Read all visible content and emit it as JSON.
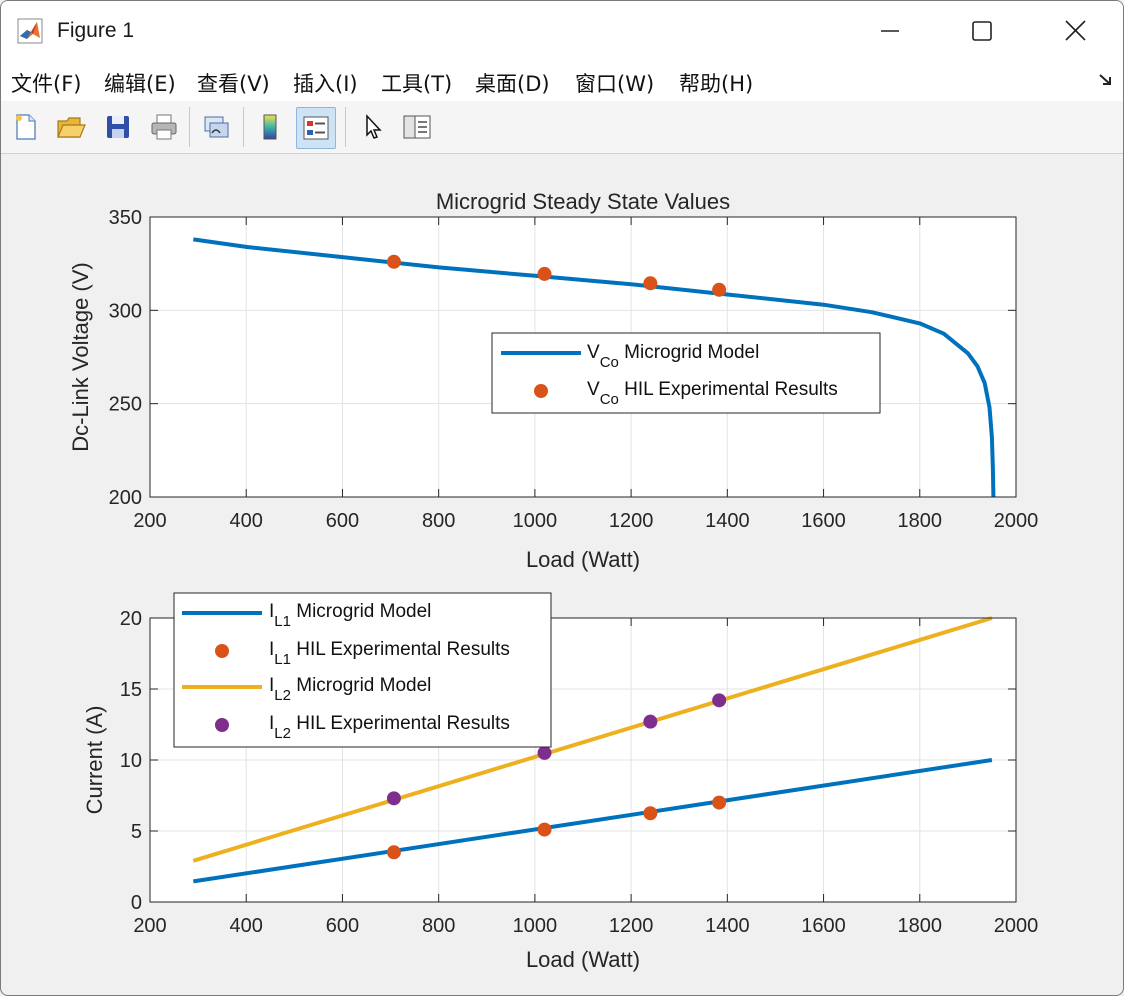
{
  "window": {
    "title": "Figure 1"
  },
  "menu": [
    "文件(F)",
    "编辑(E)",
    "查看(V)",
    "插入(I)",
    "工具(T)",
    "桌面(D)",
    "窗口(W)",
    "帮助(H)"
  ],
  "toolbar": {
    "icons": [
      "new-figure-icon",
      "open-file-icon",
      "save-icon",
      "print-icon",
      "link-plot-icon",
      "insert-colorbar-icon",
      "insert-legend-icon",
      "edit-plot-icon",
      "property-inspector-icon"
    ]
  },
  "colors": {
    "blue": "#0072bd",
    "orange": "#d95319",
    "yellow": "#edb120",
    "purple": "#7e2f8e"
  },
  "chart_data": [
    {
      "type": "line",
      "title": "Microgrid Steady State Values",
      "xlabel": "Load (Watt)",
      "ylabel": "Dc-Link Voltage (V)",
      "xlim": [
        200,
        2000
      ],
      "ylim": [
        200,
        350
      ],
      "xticks": [
        200,
        400,
        600,
        800,
        1000,
        1200,
        1400,
        1600,
        1800,
        2000
      ],
      "yticks": [
        200,
        250,
        300,
        350
      ],
      "grid": true,
      "legend_position": "center-right",
      "series": [
        {
          "name_main": "V",
          "name_sub": "Co",
          "name_rest": " Microgrid Model",
          "style": "line",
          "color": "#0072bd",
          "x": [
            290,
            400,
            600,
            800,
            1000,
            1200,
            1400,
            1600,
            1700,
            1800,
            1850,
            1900,
            1920,
            1935,
            1945,
            1950,
            1952,
            1953
          ],
          "y": [
            338,
            334,
            328.5,
            323,
            318.5,
            314,
            308.5,
            303,
            299,
            293,
            287.5,
            277,
            270,
            261,
            248,
            232,
            215,
            200
          ]
        },
        {
          "name_main": "V",
          "name_sub": "Co",
          "name_rest": " HIL Experimental Results",
          "style": "markers",
          "color": "#d95319",
          "x": [
            707,
            1020,
            1240,
            1383
          ],
          "y": [
            326,
            319.5,
            314.5,
            311
          ]
        }
      ]
    },
    {
      "type": "line",
      "title": "",
      "xlabel": "Load (Watt)",
      "ylabel": "Current (A)",
      "xlim": [
        200,
        2000
      ],
      "ylim": [
        0,
        20
      ],
      "xticks": [
        200,
        400,
        600,
        800,
        1000,
        1200,
        1400,
        1600,
        1800,
        2000
      ],
      "yticks": [
        0,
        5,
        10,
        15,
        20
      ],
      "grid": true,
      "legend_position": "top-left",
      "series": [
        {
          "name_main": "I",
          "name_sub": "L1",
          "name_rest": " Microgrid Model",
          "style": "line",
          "color": "#0072bd",
          "x": [
            290,
            1950
          ],
          "y": [
            1.45,
            10
          ]
        },
        {
          "name_main": "I",
          "name_sub": "L1",
          "name_rest": " HIL Experimental Results",
          "style": "markers",
          "color": "#d95319",
          "x": [
            707,
            1020,
            1240,
            1383
          ],
          "y": [
            3.5,
            5.1,
            6.25,
            7.0
          ]
        },
        {
          "name_main": "I",
          "name_sub": "L2",
          "name_rest": " Microgrid Model",
          "style": "line",
          "color": "#edb120",
          "x": [
            290,
            1950
          ],
          "y": [
            2.9,
            20
          ]
        },
        {
          "name_main": "I",
          "name_sub": "L2",
          "name_rest": " HIL Experimental Results",
          "style": "markers",
          "color": "#7e2f8e",
          "x": [
            707,
            1020,
            1240,
            1383
          ],
          "y": [
            7.3,
            10.5,
            12.7,
            14.2
          ]
        }
      ]
    }
  ]
}
